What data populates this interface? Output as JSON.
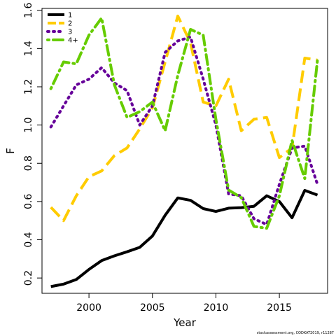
{
  "chart_data": {
    "type": "line",
    "xlabel": "Year",
    "ylabel": "F",
    "xlim": [
      1996.3,
      2018.8
    ],
    "ylim": [
      0.12,
      1.61
    ],
    "x_ticks": [
      2000,
      2005,
      2010,
      2015
    ],
    "y_ticks": [
      0.2,
      0.4,
      0.6,
      0.8,
      1.0,
      1.2,
      1.4,
      1.6
    ],
    "x_tick_labels": [
      "2000",
      "2005",
      "2010",
      "2015"
    ],
    "y_tick_labels": [
      "0.2",
      "0.4",
      "0.6",
      "0.8",
      "1.0",
      "1.2",
      "1.4",
      "1.6"
    ],
    "legend_position": "top-left",
    "grid": false,
    "x": [
      1997,
      1998,
      1999,
      2000,
      2001,
      2002,
      2003,
      2004,
      2005,
      2006,
      2007,
      2008,
      2009,
      2010,
      2011,
      2012,
      2013,
      2014,
      2015,
      2016,
      2017,
      2018
    ],
    "series": [
      {
        "name": "1",
        "color": "#000000",
        "dash": "solid",
        "values": [
          0.155,
          0.168,
          0.192,
          0.245,
          0.291,
          0.316,
          0.337,
          0.36,
          0.42,
          0.528,
          0.619,
          0.606,
          0.563,
          0.548,
          0.565,
          0.568,
          0.575,
          0.63,
          0.6,
          0.515,
          0.658,
          0.634
        ]
      },
      {
        "name": "2",
        "color": "#ffcc00",
        "dash": "long-dash",
        "values": [
          0.57,
          0.5,
          0.63,
          0.73,
          0.76,
          0.84,
          0.88,
          0.98,
          1.09,
          1.33,
          1.57,
          1.43,
          1.12,
          1.1,
          1.24,
          0.97,
          1.03,
          1.04,
          0.83,
          0.88,
          1.35,
          1.34
        ]
      },
      {
        "name": "3",
        "color": "#660099",
        "dash": "dotted",
        "values": [
          0.99,
          1.1,
          1.21,
          1.24,
          1.3,
          1.22,
          1.18,
          1.0,
          1.1,
          1.38,
          1.44,
          1.46,
          1.24,
          1.0,
          0.64,
          0.63,
          0.51,
          0.48,
          0.69,
          0.88,
          0.89,
          0.69
        ]
      },
      {
        "name": "4+",
        "color": "#66cc00",
        "dash": "dot-dash",
        "values": [
          1.19,
          1.33,
          1.32,
          1.47,
          1.56,
          1.21,
          1.04,
          1.07,
          1.12,
          0.97,
          1.26,
          1.5,
          1.47,
          1.03,
          0.66,
          0.62,
          0.47,
          0.46,
          0.63,
          0.92,
          0.72,
          1.34
        ]
      }
    ]
  },
  "footer": "stockassessment.org, CODKAT2019, r11287"
}
